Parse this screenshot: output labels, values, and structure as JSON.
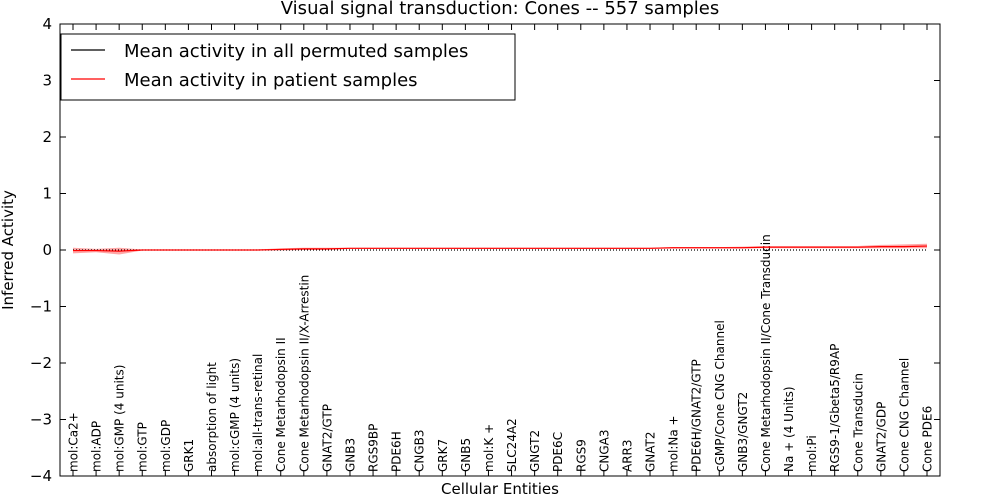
{
  "chart_data": {
    "type": "line",
    "title": "Visual signal transduction: Cones -- 557 samples",
    "xlabel": "Cellular Entities",
    "ylabel": "Inferred Activity",
    "ylim": [
      -4,
      4
    ],
    "yticks": [
      -4,
      -3,
      -2,
      -1,
      0,
      1,
      2,
      3,
      4
    ],
    "ytick_labels": [
      "−4",
      "−3",
      "−2",
      "−1",
      "0",
      "1",
      "2",
      "3",
      "4"
    ],
    "legend": {
      "placement": "top-left",
      "entries": [
        {
          "label": "Mean activity in all permuted samples",
          "color": "#000000"
        },
        {
          "label": "Mean activity in patient samples",
          "color": "#ff0000"
        }
      ]
    },
    "categories": [
      "mol:Ca2+",
      "mol:ADP",
      "mol:GMP (4 units)",
      "mol:GTP",
      "mol:GDP",
      "GRK1",
      "absorption of light",
      "mol:cGMP (4 units)",
      "mol:all-trans-retinal",
      "Cone Metarhodopsin II",
      "Cone Metarhodopsin II/X-Arrestin",
      "GNAT2/GTP",
      "GNB3",
      "RGS9BP",
      "PDE6H",
      "CNGB3",
      "GRK7",
      "GNB5",
      "mol:K +",
      "SLC24A2",
      "GNGT2",
      "PDE6C",
      "RGS9",
      "CNGA3",
      "ARR3",
      "GNAT2",
      "mol:Na +",
      "PDE6H/GNAT2/GTP",
      "cGMP/Cone CNG Channel",
      "GNB3/GNGT2",
      "Cone Metarhodopsin II/Cone Transducin",
      "Na + (4 Units)",
      "mol:Pi",
      "RGS9-1/Gbeta5/R9AP",
      "Cone Transducin",
      "GNAT2/GDP",
      "Cone CNG Channel",
      "Cone PDE6"
    ],
    "series": [
      {
        "name": "Mean activity in all permuted samples",
        "color": "#000000",
        "values": [
          0,
          0,
          0,
          0,
          0,
          0,
          0,
          0,
          0,
          0,
          0,
          0,
          0,
          0,
          0,
          0,
          0,
          0,
          0,
          0,
          0,
          0,
          0,
          0,
          0,
          0,
          0,
          0,
          0,
          0,
          0,
          0,
          0,
          0,
          0,
          0,
          0,
          0
        ]
      },
      {
        "name": "Mean activity in patient samples",
        "color": "#ff0000",
        "values": [
          -0.01,
          -0.01,
          -0.02,
          0.0,
          0.0,
          0.0,
          0.0,
          0.0,
          0.0,
          0.01,
          0.02,
          0.02,
          0.03,
          0.03,
          0.03,
          0.03,
          0.03,
          0.03,
          0.03,
          0.03,
          0.03,
          0.03,
          0.03,
          0.03,
          0.03,
          0.03,
          0.04,
          0.04,
          0.04,
          0.04,
          0.05,
          0.05,
          0.05,
          0.05,
          0.05,
          0.06,
          0.06,
          0.07
        ],
        "band_upper": [
          0.04,
          0.02,
          0.04,
          0.01,
          0.01,
          0.01,
          0.01,
          0.01,
          0.01,
          0.03,
          0.04,
          0.04,
          0.04,
          0.04,
          0.04,
          0.04,
          0.04,
          0.04,
          0.04,
          0.04,
          0.04,
          0.04,
          0.04,
          0.04,
          0.04,
          0.04,
          0.05,
          0.05,
          0.05,
          0.06,
          0.07,
          0.07,
          0.07,
          0.07,
          0.07,
          0.09,
          0.1,
          0.11
        ],
        "band_lower": [
          -0.06,
          -0.04,
          -0.08,
          -0.01,
          -0.01,
          -0.01,
          -0.01,
          -0.01,
          -0.01,
          -0.01,
          0.0,
          0.0,
          0.02,
          0.02,
          0.02,
          0.02,
          0.02,
          0.02,
          0.02,
          0.02,
          0.02,
          0.02,
          0.02,
          0.02,
          0.02,
          0.02,
          0.03,
          0.03,
          0.03,
          0.03,
          0.03,
          0.03,
          0.03,
          0.03,
          0.03,
          0.03,
          0.03,
          0.03
        ]
      }
    ]
  }
}
